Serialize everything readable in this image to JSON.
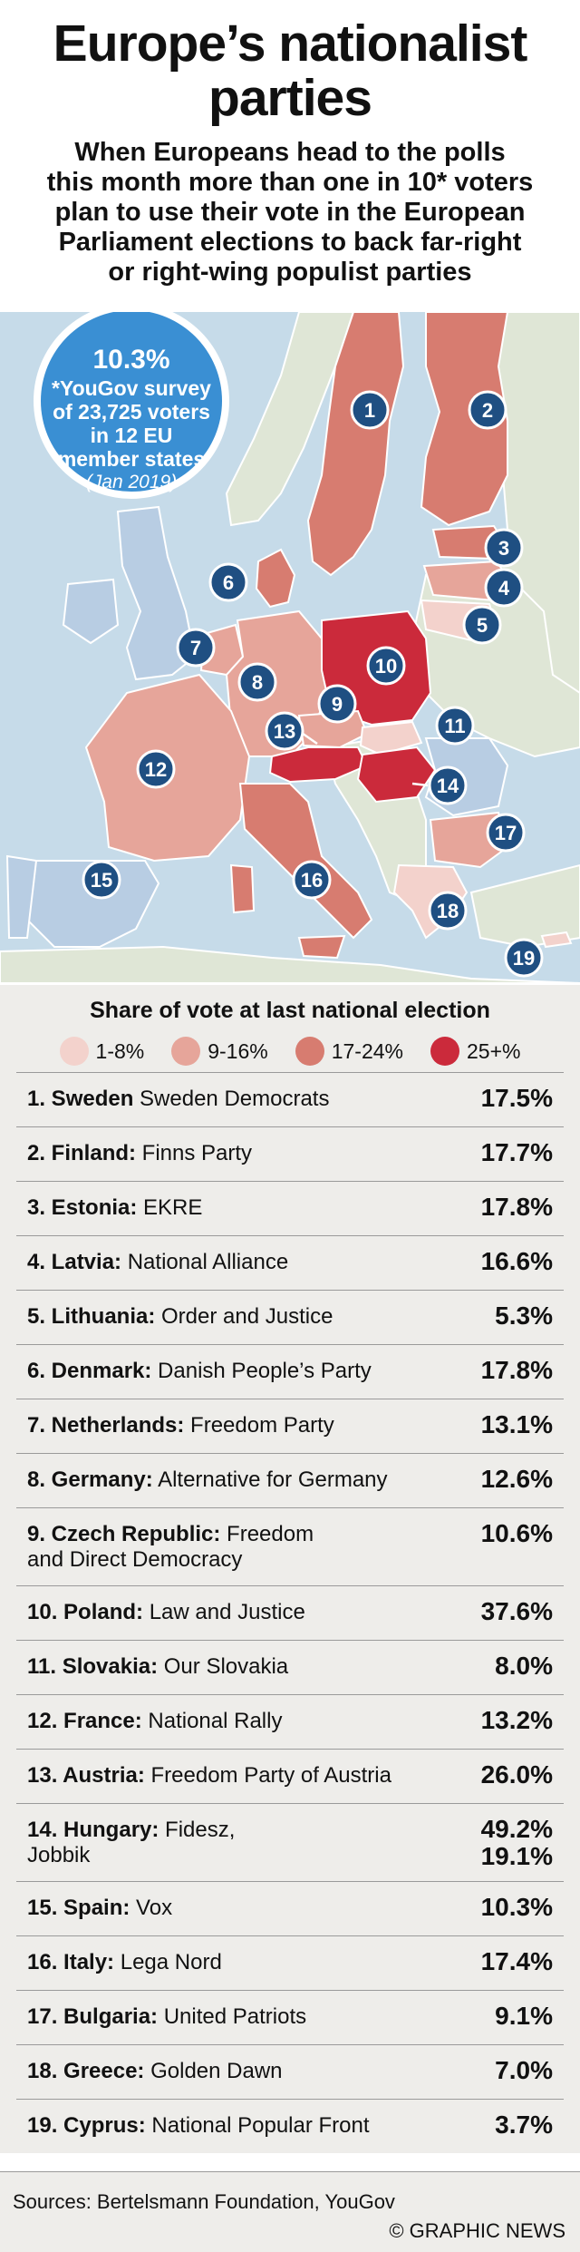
{
  "header": {
    "title_line1": "Europe’s nationalist",
    "title_line2": "parties",
    "subtitle_lines": [
      "When Europeans head to the polls",
      "this month more than one in 10* voters",
      "plan to use their vote in the European",
      "Parliament elections to back far-right",
      "or right-wing populist parties"
    ]
  },
  "bubble": {
    "figure": "10.3%",
    "lines": [
      "*YouGov survey",
      "of 23,725 voters",
      "in 12 EU",
      "member states"
    ],
    "date": "(Jan 2019)"
  },
  "colors": {
    "sea": "#c6dbe9",
    "non_eu": "#dfe6d6",
    "surveyed_blue": "#b8cde3",
    "band_1_8": "#f3d2cc",
    "band_9_16": "#e6a59a",
    "band_17_24": "#d77c70",
    "band_25_plus": "#cb2a3b",
    "marker": "#1f4f82",
    "bubble": "#3a8fd3"
  },
  "legend": {
    "title": "Share of vote at last national election",
    "items": [
      {
        "label": "1-8%",
        "color": "#f3d2cc"
      },
      {
        "label": "9-16%",
        "color": "#e6a59a"
      },
      {
        "label": "17-24%",
        "color": "#d77c70"
      },
      {
        "label": "25+%",
        "color": "#cb2a3b"
      }
    ]
  },
  "map_markers": [
    "1",
    "2",
    "3",
    "4",
    "5",
    "6",
    "7",
    "8",
    "9",
    "10",
    "11",
    "12",
    "13",
    "14",
    "15",
    "16",
    "17",
    "18",
    "19"
  ],
  "rows": [
    {
      "country": "1. Sweden",
      "party": " Sweden Democrats",
      "value": "17.5%"
    },
    {
      "country": "2. Finland:",
      "party": " Finns Party",
      "value": "17.7%"
    },
    {
      "country": "3. Estonia:",
      "party": " EKRE",
      "value": "17.8%"
    },
    {
      "country": "4. Latvia:",
      "party": " National Alliance",
      "value": "16.6%"
    },
    {
      "country": "5. Lithuania:",
      "party": " Order and Justice",
      "value": "5.3%"
    },
    {
      "country": "6. Denmark:",
      "party": " Danish People’s Party",
      "value": "17.8%"
    },
    {
      "country": "7. Netherlands:",
      "party": " Freedom Party",
      "value": "13.1%"
    },
    {
      "country": "8. Germany:",
      "party": " Alternative for Germany",
      "value": "12.6%"
    },
    {
      "country": "9. Czech Republic:",
      "party": " Freedom",
      "party2": "and Direct Democracy",
      "value": "10.6%"
    },
    {
      "country": "10. Poland:",
      "party": " Law and Justice",
      "value": "37.6%"
    },
    {
      "country": "11. Slovakia:",
      "party": " Our Slovakia",
      "value": "8.0%"
    },
    {
      "country": "12. France:",
      "party": " National Rally",
      "value": "13.2%"
    },
    {
      "country": "13. Austria:",
      "party": " Freedom Party of Austria",
      "value": "26.0%"
    },
    {
      "country": "14. Hungary:",
      "party": " Fidesz,",
      "party2": "Jobbik",
      "value": "49.2%",
      "value2": "19.1%"
    },
    {
      "country": "15. Spain:",
      "party": " Vox",
      "value": "10.3%"
    },
    {
      "country": "16. Italy:",
      "party": " Lega Nord",
      "value": "17.4%"
    },
    {
      "country": "17. Bulgaria:",
      "party": " United Patriots",
      "value": "9.1%"
    },
    {
      "country": "18. Greece:",
      "party": " Golden Dawn",
      "value": "7.0%"
    },
    {
      "country": "19. Cyprus:",
      "party": " National Popular Front",
      "value": "3.7%"
    }
  ],
  "footer": {
    "sources": "Sources: Bertelsmann Foundation, YouGov",
    "credit": "© GRAPHIC NEWS"
  }
}
